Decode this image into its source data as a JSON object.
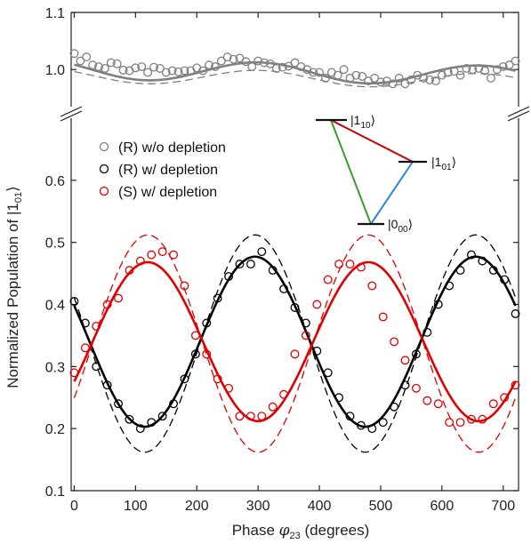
{
  "chart_data": {
    "type": "scatter",
    "xlabel_prefix": "Phase ",
    "xlabel_symbol": "φ",
    "xlabel_sub": "23",
    "xlabel_suffix": " (degrees)",
    "ylabel_prefix": "Normalized Population of |1",
    "ylabel_sub": "01",
    "ylabel_suffix": "⟩",
    "xlim": [
      -5,
      725
    ],
    "x_ticks": [
      0,
      100,
      200,
      300,
      400,
      500,
      600,
      700
    ],
    "upper_panel": {
      "ylim": [
        0.935,
        1.1
      ],
      "y_ticks": [
        1.0,
        1.1
      ],
      "y_tick_labels": [
        "1.0",
        "1.1"
      ]
    },
    "lower_panel": {
      "ylim": [
        0.1,
        0.7
      ],
      "y_ticks": [
        0.1,
        0.2,
        0.3,
        0.4,
        0.5,
        0.6
      ],
      "y_tick_labels": [
        "0.1",
        "0.2",
        "0.3",
        "0.4",
        "0.5",
        "0.6"
      ]
    },
    "axis_break": true,
    "legend": {
      "placement": "upper-left",
      "entries": [
        "(R) w/o depletion",
        "(R) w/ depletion",
        "(S) w/ depletion"
      ]
    },
    "colors": {
      "without_depletion": "#808080",
      "r_depletion": "#000000",
      "s_depletion": "#e00000",
      "energy_red": "#cc0000",
      "energy_green": "#3a9a2a",
      "energy_blue": "#2a7fe0"
    },
    "energy_diagram": {
      "levels": [
        {
          "name": "|1",
          "sub": "10",
          "close": "⟩"
        },
        {
          "name": "|1",
          "sub": "01",
          "close": "⟩"
        },
        {
          "name": "|0",
          "sub": "00",
          "close": "⟩"
        }
      ]
    },
    "series": [
      {
        "name": "(R) w/o depletion",
        "marker": "open-circle",
        "x": [
          0,
          10,
          20,
          30,
          40,
          50,
          60,
          70,
          80,
          90,
          100,
          110,
          120,
          130,
          140,
          150,
          160,
          170,
          180,
          190,
          200,
          210,
          220,
          230,
          240,
          250,
          260,
          270,
          280,
          290,
          300,
          310,
          320,
          330,
          340,
          350,
          360,
          370,
          380,
          390,
          400,
          410,
          420,
          430,
          440,
          450,
          460,
          470,
          480,
          490,
          500,
          510,
          520,
          530,
          540,
          550,
          560,
          570,
          580,
          590,
          600,
          610,
          620,
          630,
          640,
          650,
          660,
          670,
          680,
          690,
          700,
          710,
          720
        ],
        "y": [
          1.028,
          1.015,
          1.022,
          1.008,
          1.005,
          1.002,
          1.012,
          1.01,
          0.999,
          0.998,
          1.003,
          1.005,
          0.995,
          1.004,
          1.002,
          0.995,
          0.998,
          0.996,
          0.998,
          0.998,
          1.003,
          0.998,
          1.008,
          1.005,
          1.015,
          1.022,
          1.018,
          1.02,
          1.014,
          1.005,
          1.015,
          1.012,
          1.01,
          1.002,
          1.004,
          1.006,
          1.012,
          1.005,
          1.0,
          0.995,
          0.995,
          0.985,
          0.995,
          0.99,
          1.0,
          0.985,
          0.99,
          0.988,
          0.98,
          0.985,
          0.978,
          0.98,
          0.975,
          0.985,
          0.975,
          0.982,
          0.99,
          0.985,
          0.982,
          0.98,
          0.99,
          0.995,
          0.997,
          0.99,
          1.002,
          1.0,
          1.002,
          0.998,
          0.985,
          1.0,
          1.005,
          1.008,
          1.015
        ]
      },
      {
        "name": "(R) w/ depletion",
        "marker": "open-circle",
        "x": [
          0,
          18,
          36,
          54,
          72,
          90,
          108,
          126,
          144,
          162,
          180,
          198,
          216,
          234,
          252,
          270,
          288,
          306,
          324,
          342,
          360,
          378,
          396,
          414,
          432,
          450,
          468,
          486,
          504,
          522,
          540,
          558,
          576,
          594,
          612,
          630,
          648,
          666,
          684,
          702,
          720
        ],
        "y": [
          0.405,
          0.37,
          0.3,
          0.27,
          0.24,
          0.215,
          0.2,
          0.21,
          0.22,
          0.24,
          0.28,
          0.32,
          0.37,
          0.41,
          0.445,
          0.465,
          0.465,
          0.485,
          0.455,
          0.425,
          0.395,
          0.37,
          0.325,
          0.29,
          0.25,
          0.22,
          0.205,
          0.2,
          0.21,
          0.235,
          0.27,
          0.32,
          0.355,
          0.4,
          0.43,
          0.455,
          0.48,
          0.47,
          0.455,
          0.44,
          0.385
        ]
      },
      {
        "name": "(S) w/ depletion",
        "marker": "open-circle",
        "x": [
          0,
          18,
          36,
          54,
          72,
          90,
          108,
          126,
          144,
          162,
          180,
          198,
          216,
          234,
          252,
          270,
          288,
          306,
          324,
          342,
          360,
          378,
          396,
          414,
          432,
          450,
          468,
          486,
          504,
          522,
          540,
          558,
          576,
          594,
          612,
          630,
          648,
          666,
          684,
          702,
          720
        ],
        "y": [
          0.29,
          0.33,
          0.365,
          0.4,
          0.41,
          0.455,
          0.47,
          0.48,
          0.485,
          0.48,
          0.43,
          0.35,
          0.32,
          0.28,
          0.265,
          0.22,
          0.22,
          0.22,
          0.235,
          0.255,
          0.32,
          0.35,
          0.4,
          0.44,
          0.465,
          0.465,
          0.46,
          0.43,
          0.38,
          0.34,
          0.31,
          0.265,
          0.245,
          0.24,
          0.21,
          0.21,
          0.215,
          0.215,
          0.24,
          0.25,
          0.27
        ]
      }
    ],
    "fits": [
      {
        "of": "(R) w/o depletion",
        "style": "solid",
        "offset": 1.0,
        "amplitude": 0.017,
        "period": 360,
        "phase_deg": 300,
        "trend": -1.5e-05
      },
      {
        "of": "(R) w/o depletion",
        "style": "dashed",
        "offset": 0.99,
        "amplitude": 0.013,
        "period": 360,
        "phase_deg": 300,
        "trend": -1.5e-05
      },
      {
        "of": "(R) w/ depletion",
        "style": "solid",
        "offset": 0.34,
        "amplitude": 0.137,
        "period": 360,
        "phase_deg": 295
      },
      {
        "of": "(R) w/ depletion",
        "style": "dashed",
        "offset": 0.337,
        "amplitude": 0.175,
        "period": 360,
        "phase_deg": 295
      },
      {
        "of": "(S) w/ depletion",
        "style": "solid",
        "offset": 0.34,
        "amplitude": 0.128,
        "period": 360,
        "phase_deg": 120
      },
      {
        "of": "(S) w/ depletion",
        "style": "dashed",
        "offset": 0.337,
        "amplitude": 0.175,
        "period": 360,
        "phase_deg": 120
      }
    ]
  }
}
